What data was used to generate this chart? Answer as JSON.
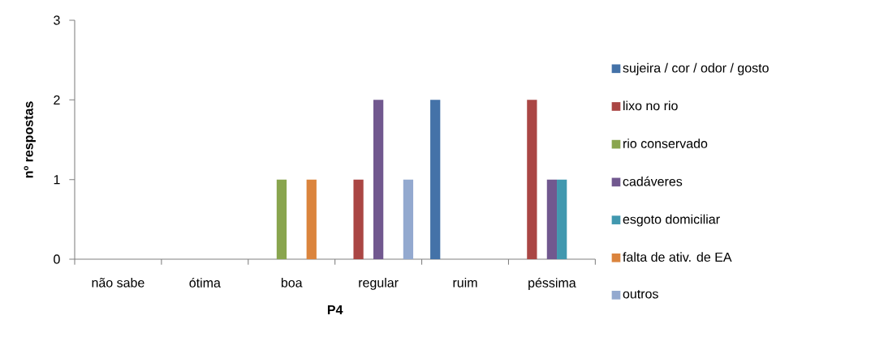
{
  "chart_data": {
    "type": "bar",
    "xlabel": "P4",
    "ylabel": "nº respostas",
    "categories": [
      "não sabe",
      "ótima",
      "boa",
      "regular",
      "ruim",
      "péssima"
    ],
    "series": [
      {
        "name": "sujeira / cor / odor / gosto",
        "color": "#4472a8",
        "values": [
          0,
          0,
          0,
          0,
          2,
          0
        ]
      },
      {
        "name": "lixo no rio",
        "color": "#aa4644",
        "values": [
          0,
          0,
          0,
          1,
          0,
          2
        ]
      },
      {
        "name": "rio conservado",
        "color": "#89a54e",
        "values": [
          0,
          0,
          1,
          0,
          0,
          0
        ]
      },
      {
        "name": "cadáveres",
        "color": "#71588f",
        "values": [
          0,
          0,
          0,
          2,
          0,
          1
        ]
      },
      {
        "name": "esgoto domiciliar",
        "color": "#4198af",
        "values": [
          0,
          0,
          0,
          0,
          0,
          1
        ]
      },
      {
        "name": "falta de ativ. de EA",
        "color": "#db843d",
        "values": [
          0,
          0,
          1,
          0,
          0,
          0
        ]
      },
      {
        "name": "outros",
        "color": "#93a9cf",
        "values": [
          0,
          0,
          0,
          1,
          0,
          0
        ]
      }
    ],
    "ylim": [
      0,
      3
    ],
    "yticks": [
      0,
      1,
      2,
      3
    ],
    "legend": "right"
  }
}
